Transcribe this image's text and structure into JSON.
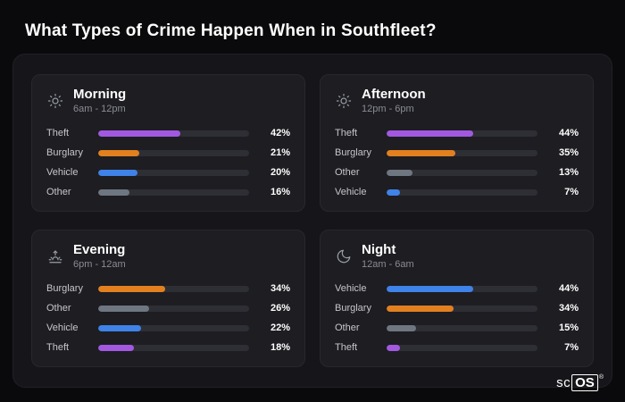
{
  "title": "What Types of Crime Happen When in Southfleet?",
  "colors": {
    "purple": "#a259e0",
    "orange": "#e2801f",
    "blue": "#3f82e8",
    "gray": "#6e7681",
    "track": "#2e2e35",
    "card_bg": "#1d1d22",
    "panel_bg": "#16161a",
    "page_bg": "#0a0a0c"
  },
  "brand": {
    "plain": "sc",
    "boxed": "OS",
    "registered": "®"
  },
  "cards": [
    {
      "id": "morning",
      "title": "Morning",
      "subtitle": "6am - 12pm",
      "icon": "sun-icon",
      "rows": [
        {
          "label": "Theft",
          "value": 42,
          "pct": "42%",
          "color": "purple"
        },
        {
          "label": "Burglary",
          "value": 21,
          "pct": "21%",
          "color": "orange"
        },
        {
          "label": "Vehicle",
          "value": 20,
          "pct": "20%",
          "color": "blue"
        },
        {
          "label": "Other",
          "value": 16,
          "pct": "16%",
          "color": "gray"
        }
      ]
    },
    {
      "id": "afternoon",
      "title": "Afternoon",
      "subtitle": "12pm - 6pm",
      "icon": "sun-icon",
      "rows": [
        {
          "label": "Theft",
          "value": 44,
          "pct": "44%",
          "color": "purple"
        },
        {
          "label": "Burglary",
          "value": 35,
          "pct": "35%",
          "color": "orange"
        },
        {
          "label": "Other",
          "value": 13,
          "pct": "13%",
          "color": "gray"
        },
        {
          "label": "Vehicle",
          "value": 7,
          "pct": "7%",
          "color": "blue"
        }
      ]
    },
    {
      "id": "evening",
      "title": "Evening",
      "subtitle": "6pm - 12am",
      "icon": "sunset-icon",
      "rows": [
        {
          "label": "Burglary",
          "value": 34,
          "pct": "34%",
          "color": "orange"
        },
        {
          "label": "Other",
          "value": 26,
          "pct": "26%",
          "color": "gray"
        },
        {
          "label": "Vehicle",
          "value": 22,
          "pct": "22%",
          "color": "blue"
        },
        {
          "label": "Theft",
          "value": 18,
          "pct": "18%",
          "color": "purple"
        }
      ]
    },
    {
      "id": "night",
      "title": "Night",
      "subtitle": "12am - 6am",
      "icon": "moon-icon",
      "rows": [
        {
          "label": "Vehicle",
          "value": 44,
          "pct": "44%",
          "color": "blue"
        },
        {
          "label": "Burglary",
          "value": 34,
          "pct": "34%",
          "color": "orange"
        },
        {
          "label": "Other",
          "value": 15,
          "pct": "15%",
          "color": "gray"
        },
        {
          "label": "Theft",
          "value": 7,
          "pct": "7%",
          "color": "purple"
        }
      ]
    }
  ],
  "chart_data": [
    {
      "type": "bar",
      "orientation": "horizontal",
      "title": "Morning",
      "subtitle": "6am - 12pm",
      "categories": [
        "Theft",
        "Burglary",
        "Vehicle",
        "Other"
      ],
      "values": [
        42,
        21,
        20,
        16
      ],
      "unit": "%",
      "xlim": [
        0,
        77
      ],
      "legend": "none"
    },
    {
      "type": "bar",
      "orientation": "horizontal",
      "title": "Afternoon",
      "subtitle": "12pm - 6pm",
      "categories": [
        "Theft",
        "Burglary",
        "Other",
        "Vehicle"
      ],
      "values": [
        44,
        35,
        13,
        7
      ],
      "unit": "%",
      "xlim": [
        0,
        77
      ],
      "legend": "none"
    },
    {
      "type": "bar",
      "orientation": "horizontal",
      "title": "Evening",
      "subtitle": "6pm - 12am",
      "categories": [
        "Burglary",
        "Other",
        "Vehicle",
        "Theft"
      ],
      "values": [
        34,
        26,
        22,
        18
      ],
      "unit": "%",
      "xlim": [
        0,
        77
      ],
      "legend": "none"
    },
    {
      "type": "bar",
      "orientation": "horizontal",
      "title": "Night",
      "subtitle": "12am - 6am",
      "categories": [
        "Vehicle",
        "Burglary",
        "Other",
        "Theft"
      ],
      "values": [
        44,
        34,
        15,
        7
      ],
      "unit": "%",
      "xlim": [
        0,
        77
      ],
      "legend": "none"
    }
  ]
}
